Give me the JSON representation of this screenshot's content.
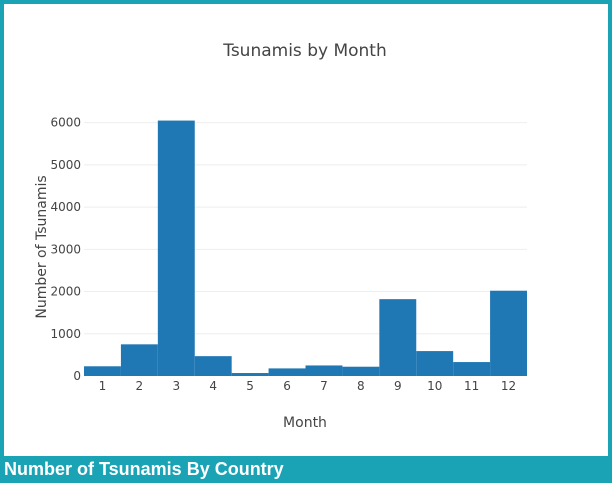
{
  "chart_data": {
    "type": "bar",
    "title": "Tsunamis by Month",
    "xlabel": "Month",
    "ylabel": "Number of Tsunamis",
    "categories": [
      "1",
      "2",
      "3",
      "4",
      "5",
      "6",
      "7",
      "8",
      "9",
      "10",
      "11",
      "12"
    ],
    "values": [
      230,
      750,
      6050,
      470,
      70,
      180,
      250,
      220,
      1820,
      590,
      330,
      2020
    ],
    "ylim": [
      0,
      6400
    ],
    "yticks": [
      "0",
      "1000",
      "2000",
      "3000",
      "4000",
      "5000",
      "6000"
    ],
    "bar_color": "#1f77b4",
    "grid": true
  },
  "footer": {
    "heading": "Number of Tsunamis By Country"
  },
  "colors": {
    "frame": "#19a3b4",
    "panel": "#ffffff"
  }
}
